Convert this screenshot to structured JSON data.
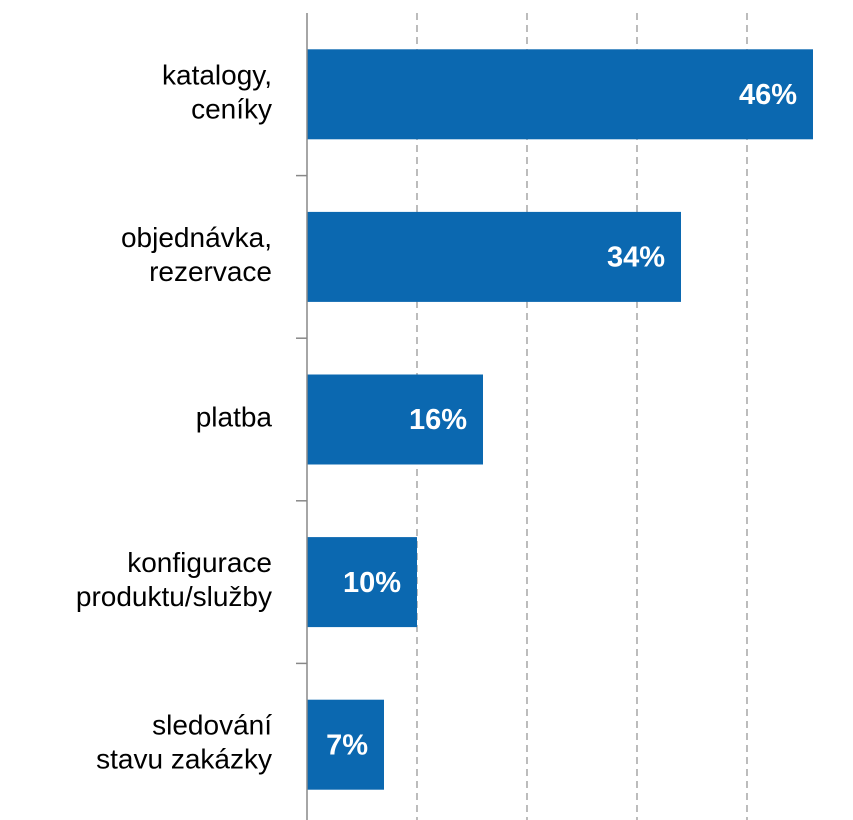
{
  "chart_data": {
    "type": "bar",
    "orientation": "horizontal",
    "categories": [
      "katalogy,\nceníky",
      "objednávka,\nrezervace",
      "platba",
      "konfigurace\nproduktu/služby",
      "sledování\nstavu zakázky"
    ],
    "values": [
      46,
      34,
      16,
      10,
      7
    ],
    "value_labels": [
      "46%",
      "34%",
      "16%",
      "10%",
      "7%"
    ],
    "color": "#0b68b0",
    "xlim": [
      0,
      50
    ],
    "xticks": [
      0,
      10,
      20,
      30,
      40,
      50
    ],
    "grid": true
  }
}
